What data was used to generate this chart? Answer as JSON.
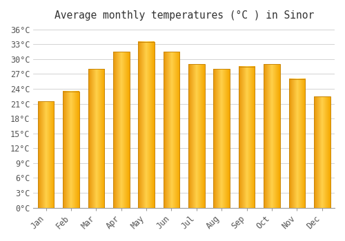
{
  "title": "Average monthly temperatures (°C ) in Sinor",
  "months": [
    "Jan",
    "Feb",
    "Mar",
    "Apr",
    "May",
    "Jun",
    "Jul",
    "Aug",
    "Sep",
    "Oct",
    "Nov",
    "Dec"
  ],
  "values": [
    21.5,
    23.5,
    28.0,
    31.5,
    33.5,
    31.5,
    29.0,
    28.0,
    28.5,
    29.0,
    26.0,
    22.5
  ],
  "bar_color_left": "#E8960A",
  "bar_color_center": "#FFD04A",
  "bar_color_right": "#F5A800",
  "bar_edge_color": "#C8860A",
  "ylim": [
    0,
    37
  ],
  "ytick_step": 3,
  "background_color": "#ffffff",
  "grid_color": "#cccccc",
  "title_fontsize": 10.5,
  "tick_fontsize": 8.5,
  "font_family": "monospace"
}
